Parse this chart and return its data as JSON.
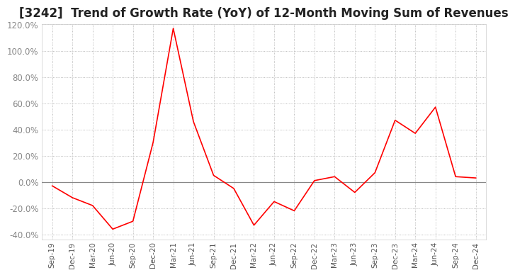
{
  "title": "[3242]  Trend of Growth Rate (YoY) of 12-Month Moving Sum of Revenues",
  "title_fontsize": 12,
  "line_color": "#ff0000",
  "background_color": "#ffffff",
  "grid_color": "#aaaaaa",
  "zero_line_color": "#888888",
  "ylim": [
    -0.44,
    0.128
  ],
  "yticks": [
    -0.4,
    -0.2,
    0.0,
    0.2,
    0.4,
    0.6,
    0.8,
    1.0,
    1.2
  ],
  "xlabels": [
    "Sep-19",
    "Dec-19",
    "Mar-20",
    "Jun-20",
    "Sep-20",
    "Dec-20",
    "Mar-21",
    "Jun-21",
    "Sep-21",
    "Dec-21",
    "Mar-22",
    "Jun-22",
    "Sep-22",
    "Dec-22",
    "Mar-23",
    "Jun-23",
    "Sep-23",
    "Dec-23",
    "Mar-24",
    "Jun-24",
    "Sep-24",
    "Dec-24"
  ],
  "values": [
    -0.03,
    -0.12,
    -0.18,
    -0.36,
    -0.3,
    0.3,
    1.17,
    0.46,
    0.05,
    -0.05,
    -0.33,
    -0.15,
    -0.22,
    0.01,
    0.04,
    -0.08,
    0.07,
    0.47,
    0.37,
    0.57,
    0.04,
    0.03
  ]
}
